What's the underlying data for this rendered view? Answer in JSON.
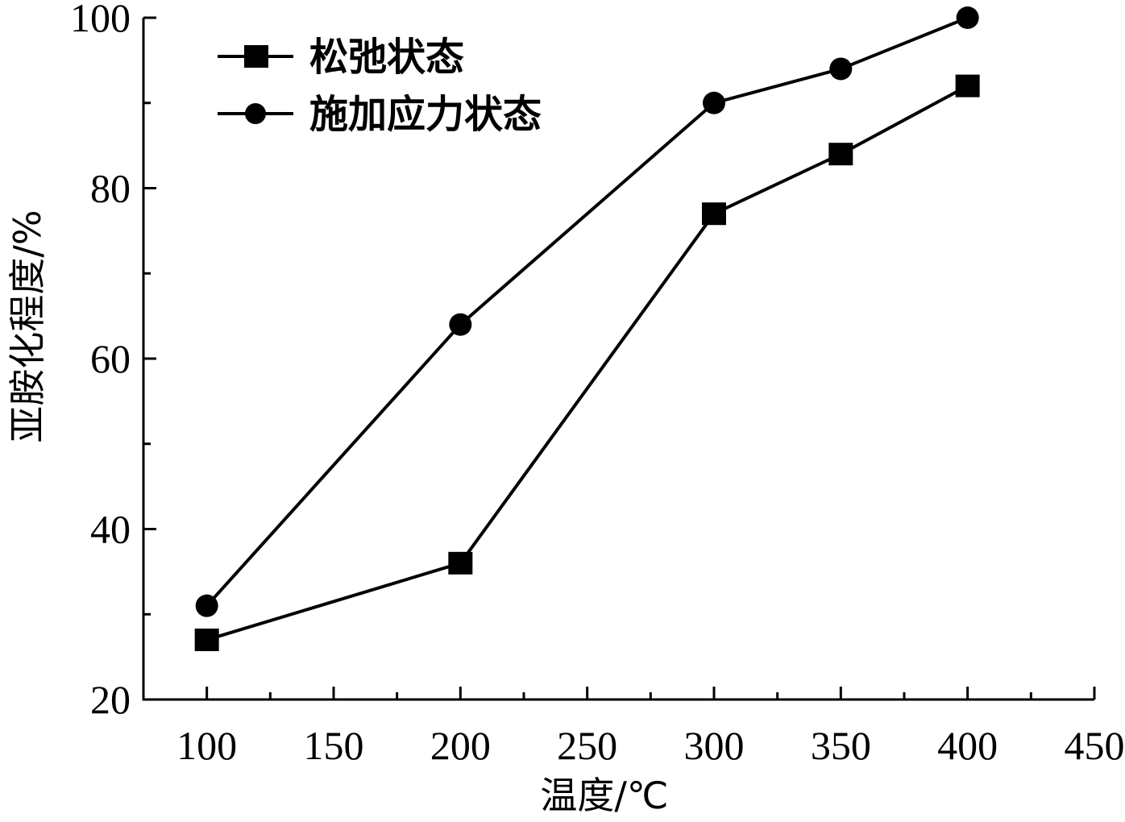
{
  "chart_data": {
    "type": "line",
    "title": "",
    "xlabel": "温度/℃",
    "ylabel": "亚胺化程度/%",
    "xlim": [
      75,
      450
    ],
    "ylim": [
      20,
      100
    ],
    "xticks": [
      100,
      150,
      200,
      250,
      300,
      350,
      400,
      450
    ],
    "yticks": [
      20,
      40,
      60,
      80,
      100
    ],
    "grid": false,
    "legend_position": "top-left",
    "series": [
      {
        "name": "松弛状态",
        "marker": "square",
        "color": "#000000",
        "x": [
          100,
          200,
          300,
          350,
          400
        ],
        "y": [
          27,
          36,
          77,
          84,
          92
        ]
      },
      {
        "name": "施加应力状态",
        "marker": "circle",
        "color": "#000000",
        "x": [
          100,
          200,
          300,
          350,
          400
        ],
        "y": [
          31,
          64,
          90,
          94,
          100
        ]
      }
    ]
  }
}
